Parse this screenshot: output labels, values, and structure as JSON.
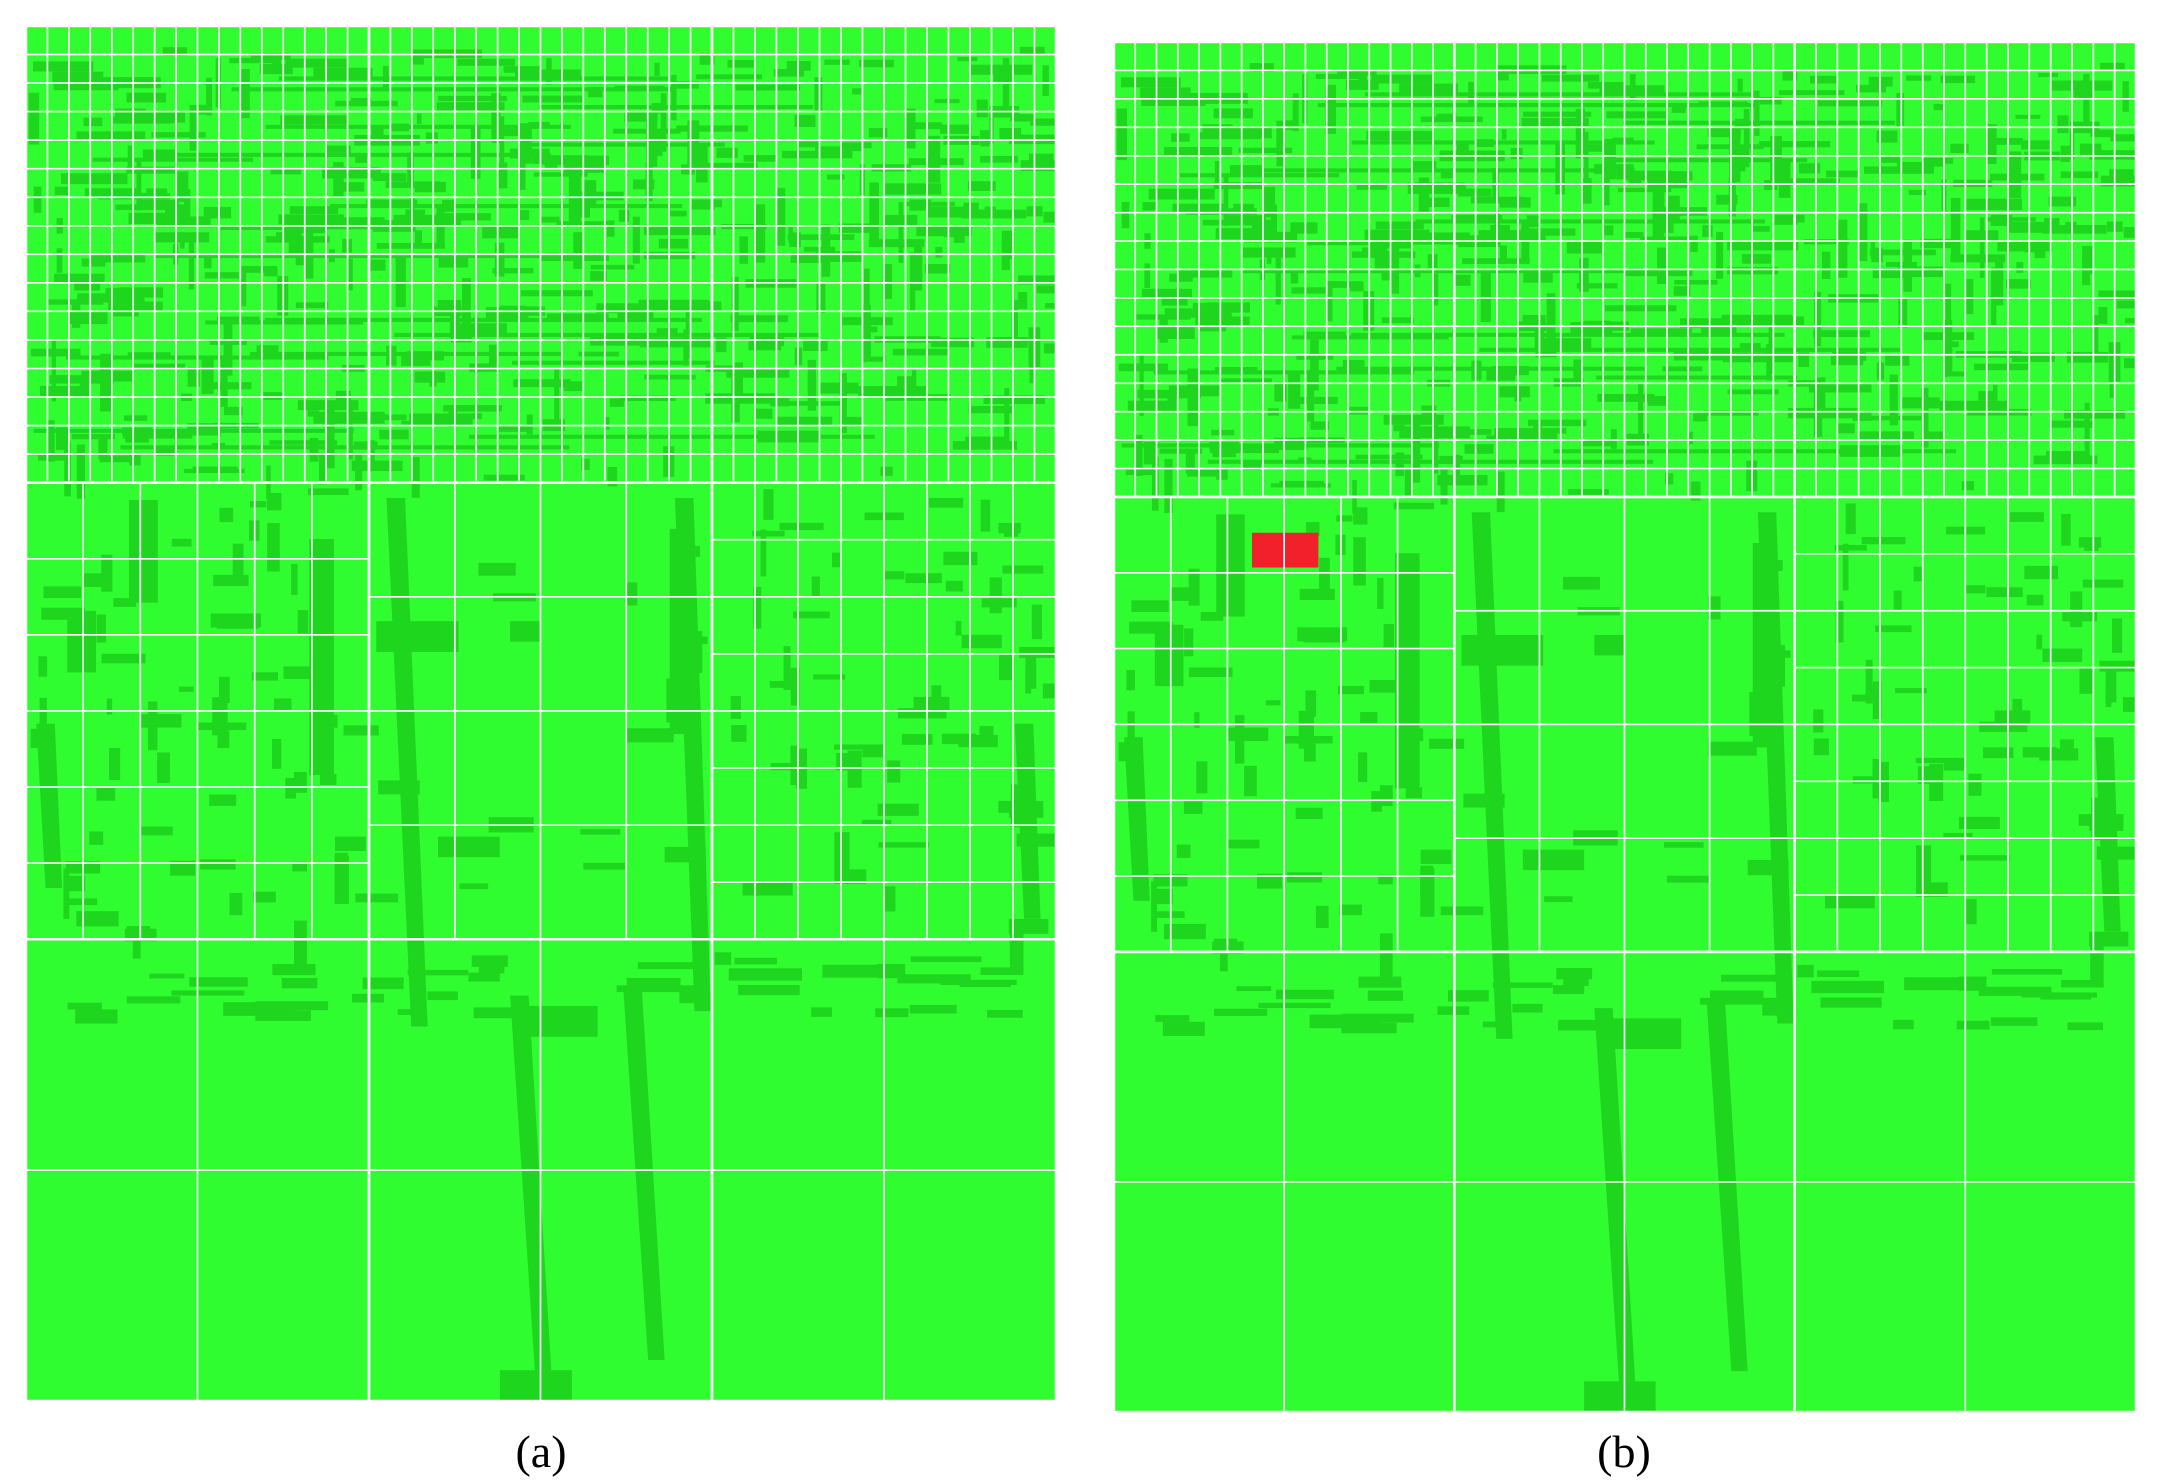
{
  "colors": {
    "background": "#2ffd2f",
    "building": "#1fd61f",
    "grid": "#ffffff",
    "highlight": "#f2202a"
  },
  "panels": [
    {
      "id": "a",
      "caption": "(a)",
      "has_highlight": false
    },
    {
      "id": "b",
      "caption": "(b)",
      "has_highlight": true
    }
  ]
}
